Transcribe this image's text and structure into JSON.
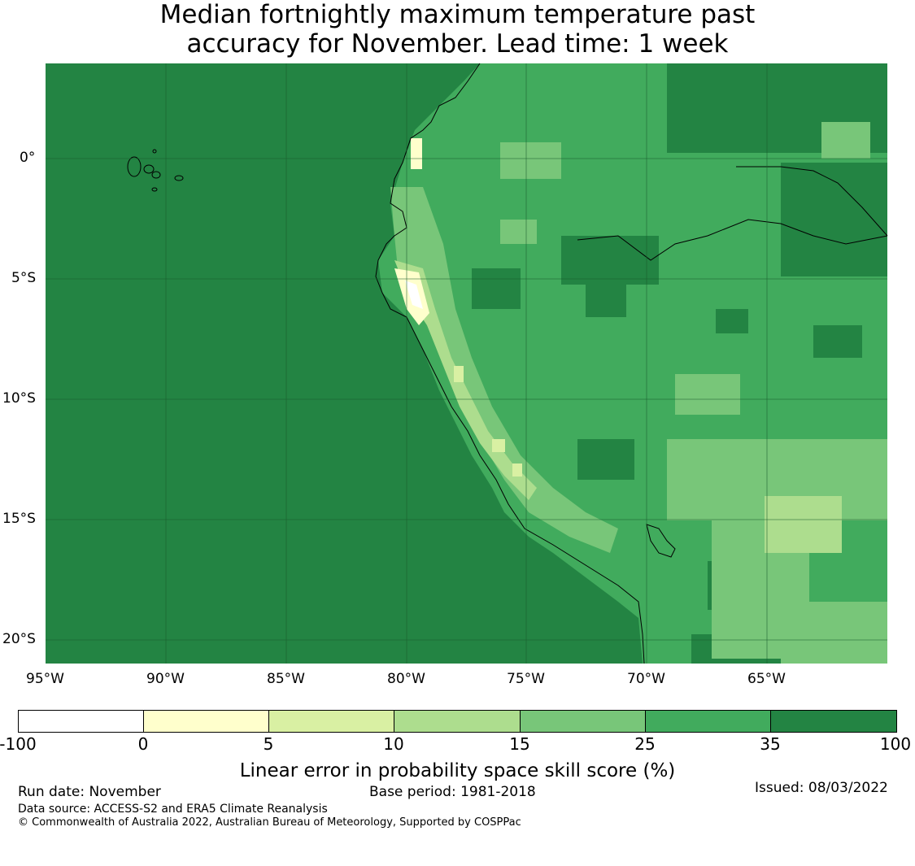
{
  "title": {
    "line1": "Median fortnightly maximum temperature past",
    "line2": "accuracy for November. Lead time: 1 week"
  },
  "map": {
    "lon_labels": [
      "95°W",
      "90°W",
      "85°W",
      "80°W",
      "75°W",
      "70°W",
      "65°W"
    ],
    "lat_labels": [
      "0°",
      "5°S",
      "10°S",
      "15°S",
      "20°S"
    ],
    "ocean_color": "#238443"
  },
  "colorbar": {
    "ticks": [
      "-100",
      "0",
      "5",
      "10",
      "15",
      "25",
      "35",
      "100"
    ],
    "colors": [
      "#ffffff",
      "#ffffcc",
      "#d9f0a3",
      "#addd8e",
      "#78c679",
      "#41ab5d",
      "#238443"
    ],
    "label": "Linear error in probability space skill score (%)"
  },
  "footer": {
    "run_date": "Run date: November",
    "base_period": "Base period: 1981-2018",
    "issued": "Issued: 08/03/2022",
    "data_source": "Data source: ACCESS-S2 and ERA5 Climate Reanalysis",
    "copyright": "© Commonwealth of Australia 2022, Australian Bureau of Meteorology, Supported by COSPPac"
  }
}
